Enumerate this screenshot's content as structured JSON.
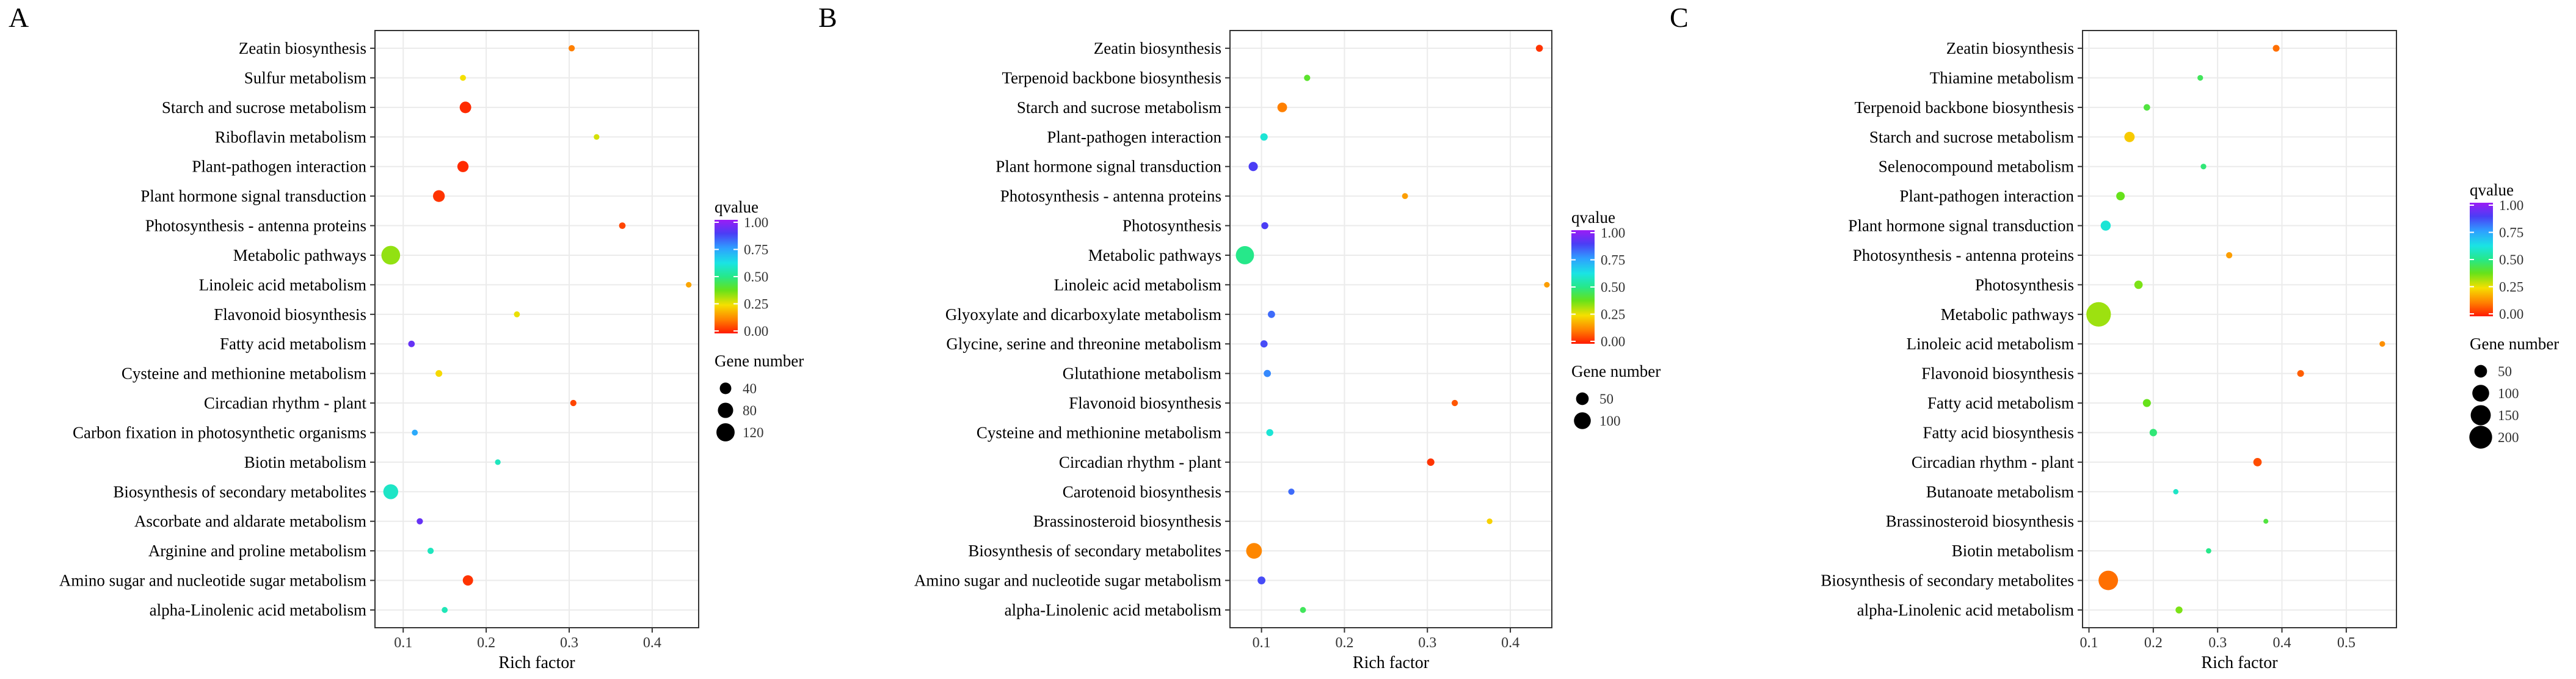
{
  "chart_data": [
    {
      "panel": "A",
      "type": "scatter",
      "xlabel": "Rich factor",
      "x_ticks": [
        0.1,
        0.2,
        0.3,
        0.4
      ],
      "x_tick_labels": [
        "0.1",
        "0.2",
        "0.3",
        "0.4"
      ],
      "xlim": [
        0.066,
        0.456
      ],
      "grid": true,
      "color_legend": {
        "title": "qvalue",
        "ticks": [
          "1.00",
          "0.75",
          "0.50",
          "0.25",
          "0.00"
        ],
        "range": [
          0,
          1
        ]
      },
      "size_legend": {
        "title": "Gene number",
        "values": [
          40,
          80,
          120
        ]
      },
      "pathways": [
        "Zeatin biosynthesis",
        "Sulfur metabolism",
        "Starch and sucrose metabolism",
        "Riboflavin metabolism",
        "Plant-pathogen interaction",
        "Plant hormone signal transduction",
        "Photosynthesis - antenna proteins",
        "Metabolic pathways",
        "Linoleic acid metabolism",
        "Flavonoid biosynthesis",
        "Fatty acid metabolism",
        "Cysteine and methionine metabolism",
        "Circadian rhythm - plant",
        "Carbon fixation in photosynthetic organisms",
        "Biotin metabolism",
        "Biosynthesis of secondary metabolites",
        "Ascorbate and aldarate metabolism",
        "Arginine and proline metabolism",
        "Amino sugar and nucleotide sugar metabolism",
        "alpha-Linolenic acid metabolism"
      ],
      "points": [
        {
          "pathway": "Zeatin biosynthesis",
          "rich_factor": 0.303,
          "qvalue": 0.12,
          "gene_number": 7
        },
        {
          "pathway": "Sulfur metabolism",
          "rich_factor": 0.172,
          "qvalue": 0.25,
          "gene_number": 6
        },
        {
          "pathway": "Starch and sucrose metabolism",
          "rich_factor": 0.175,
          "qvalue": 0.02,
          "gene_number": 40
        },
        {
          "pathway": "Riboflavin metabolism",
          "rich_factor": 0.333,
          "qvalue": 0.28,
          "gene_number": 5
        },
        {
          "pathway": "Plant-pathogen interaction",
          "rich_factor": 0.172,
          "qvalue": 0.02,
          "gene_number": 37
        },
        {
          "pathway": "Plant hormone signal transduction",
          "rich_factor": 0.143,
          "qvalue": 0.03,
          "gene_number": 42
        },
        {
          "pathway": "Photosynthesis - antenna proteins",
          "rich_factor": 0.364,
          "qvalue": 0.05,
          "gene_number": 8
        },
        {
          "pathway": "Metabolic pathways",
          "rich_factor": 0.085,
          "qvalue": 0.34,
          "gene_number": 128
        },
        {
          "pathway": "Linoleic acid metabolism",
          "rich_factor": 0.444,
          "qvalue": 0.17,
          "gene_number": 5
        },
        {
          "pathway": "Flavonoid biosynthesis",
          "rich_factor": 0.237,
          "qvalue": 0.26,
          "gene_number": 6
        },
        {
          "pathway": "Fatty acid metabolism",
          "rich_factor": 0.11,
          "qvalue": 0.92,
          "gene_number": 8
        },
        {
          "pathway": "Cysteine and methionine metabolism",
          "rich_factor": 0.143,
          "qvalue": 0.24,
          "gene_number": 9
        },
        {
          "pathway": "Circadian rhythm - plant",
          "rich_factor": 0.305,
          "qvalue": 0.05,
          "gene_number": 7
        },
        {
          "pathway": "Carbon fixation in photosynthetic organisms",
          "rich_factor": 0.114,
          "qvalue": 0.73,
          "gene_number": 6
        },
        {
          "pathway": "Biotin metabolism",
          "rich_factor": 0.214,
          "qvalue": 0.57,
          "gene_number": 5
        },
        {
          "pathway": "Biosynthesis of secondary metabolites",
          "rich_factor": 0.085,
          "qvalue": 0.58,
          "gene_number": 75
        },
        {
          "pathway": "Ascorbate and aldarate metabolism",
          "rich_factor": 0.12,
          "qvalue": 0.92,
          "gene_number": 7
        },
        {
          "pathway": "Arginine and proline metabolism",
          "rich_factor": 0.133,
          "qvalue": 0.57,
          "gene_number": 7
        },
        {
          "pathway": "Amino sugar and nucleotide sugar metabolism",
          "rich_factor": 0.178,
          "qvalue": 0.03,
          "gene_number": 30
        },
        {
          "pathway": "alpha-Linolenic acid metabolism",
          "rich_factor": 0.15,
          "qvalue": 0.56,
          "gene_number": 6
        }
      ]
    },
    {
      "panel": "B",
      "type": "scatter",
      "xlabel": "Rich factor",
      "x_ticks": [
        0.1,
        0.2,
        0.3,
        0.4
      ],
      "x_tick_labels": [
        "0.1",
        "0.2",
        "0.3",
        "0.4"
      ],
      "xlim": [
        0.062,
        0.45
      ],
      "grid": true,
      "color_legend": {
        "title": "qvalue",
        "ticks": [
          "1.00",
          "0.75",
          "0.50",
          "0.25",
          "0.00"
        ],
        "range": [
          0,
          1
        ]
      },
      "size_legend": {
        "title": "Gene number",
        "values": [
          50,
          100
        ]
      },
      "pathways": [
        "Zeatin biosynthesis",
        "Terpenoid backbone biosynthesis",
        "Starch and sucrose metabolism",
        "Plant-pathogen interaction",
        "Plant hormone signal transduction",
        "Photosynthesis - antenna proteins",
        "Photosynthesis",
        "Metabolic pathways",
        "Linoleic acid metabolism",
        "Glyoxylate and dicarboxylate metabolism",
        "Glycine, serine and threonine metabolism",
        "Glutathione metabolism",
        "Flavonoid biosynthesis",
        "Cysteine and methionine metabolism",
        "Circadian rhythm - plant",
        "Carotenoid biosynthesis",
        "Brassinosteroid biosynthesis",
        "Biosynthesis of secondary metabolites",
        "Amino sugar and nucleotide sugar metabolism",
        "alpha-Linolenic acid metabolism"
      ],
      "points": [
        {
          "pathway": "Zeatin biosynthesis",
          "rich_factor": 0.435,
          "qvalue": 0.03,
          "gene_number": 10
        },
        {
          "pathway": "Terpenoid backbone biosynthesis",
          "rich_factor": 0.155,
          "qvalue": 0.4,
          "gene_number": 7
        },
        {
          "pathway": "Starch and sucrose metabolism",
          "rich_factor": 0.125,
          "qvalue": 0.12,
          "gene_number": 25
        },
        {
          "pathway": "Plant-pathogen interaction",
          "rich_factor": 0.103,
          "qvalue": 0.6,
          "gene_number": 12
        },
        {
          "pathway": "Plant hormone signal transduction",
          "rich_factor": 0.09,
          "qvalue": 0.88,
          "gene_number": 22
        },
        {
          "pathway": "Photosynthesis - antenna proteins",
          "rich_factor": 0.273,
          "qvalue": 0.16,
          "gene_number": 6
        },
        {
          "pathway": "Photosynthesis",
          "rich_factor": 0.104,
          "qvalue": 0.88,
          "gene_number": 10
        },
        {
          "pathway": "Metabolic pathways",
          "rich_factor": 0.08,
          "qvalue": 0.5,
          "gene_number": 120
        },
        {
          "pathway": "Linoleic acid metabolism",
          "rich_factor": 0.444,
          "qvalue": 0.16,
          "gene_number": 5
        },
        {
          "pathway": "Glyoxylate and dicarboxylate metabolism",
          "rich_factor": 0.112,
          "qvalue": 0.82,
          "gene_number": 11
        },
        {
          "pathway": "Glycine, serine and threonine metabolism",
          "rich_factor": 0.103,
          "qvalue": 0.86,
          "gene_number": 11
        },
        {
          "pathway": "Glutathione metabolism",
          "rich_factor": 0.107,
          "qvalue": 0.78,
          "gene_number": 11
        },
        {
          "pathway": "Flavonoid biosynthesis",
          "rich_factor": 0.333,
          "qvalue": 0.07,
          "gene_number": 7
        },
        {
          "pathway": "Cysteine and methionine metabolism",
          "rich_factor": 0.11,
          "qvalue": 0.6,
          "gene_number": 10
        },
        {
          "pathway": "Circadian rhythm - plant",
          "rich_factor": 0.304,
          "qvalue": 0.03,
          "gene_number": 12
        },
        {
          "pathway": "Carotenoid biosynthesis",
          "rich_factor": 0.136,
          "qvalue": 0.82,
          "gene_number": 7
        },
        {
          "pathway": "Brassinosteroid biosynthesis",
          "rich_factor": 0.375,
          "qvalue": 0.23,
          "gene_number": 5
        },
        {
          "pathway": "Biosynthesis of secondary metabolites",
          "rich_factor": 0.091,
          "qvalue": 0.13,
          "gene_number": 85
        },
        {
          "pathway": "Amino sugar and nucleotide sugar metabolism",
          "rich_factor": 0.1,
          "qvalue": 0.86,
          "gene_number": 14
        },
        {
          "pathway": "alpha-Linolenic acid metabolism",
          "rich_factor": 0.15,
          "qvalue": 0.45,
          "gene_number": 6
        }
      ]
    },
    {
      "panel": "C",
      "type": "scatter",
      "xlabel": "Rich factor",
      "x_ticks": [
        0.1,
        0.2,
        0.3,
        0.4,
        0.5
      ],
      "x_tick_labels": [
        "0.1",
        "0.2",
        "0.3",
        "0.4",
        "0.5"
      ],
      "xlim": [
        0.09,
        0.578
      ],
      "grid": true,
      "color_legend": {
        "title": "qvalue",
        "ticks": [
          "1.00",
          "0.75",
          "0.50",
          "0.25",
          "0.00"
        ],
        "range": [
          0,
          1
        ]
      },
      "size_legend": {
        "title": "Gene number",
        "values": [
          50,
          100,
          150,
          200
        ]
      },
      "pathways": [
        "Zeatin biosynthesis",
        "Thiamine metabolism",
        "Terpenoid backbone biosynthesis",
        "Starch and sucrose metabolism",
        "Selenocompound metabolism",
        "Plant-pathogen interaction",
        "Plant hormone signal transduction",
        "Photosynthesis - antenna proteins",
        "Photosynthesis",
        "Metabolic pathways",
        "Linoleic acid metabolism",
        "Flavonoid biosynthesis",
        "Fatty acid metabolism",
        "Fatty acid biosynthesis",
        "Circadian rhythm - plant",
        "Butanoate metabolism",
        "Brassinosteroid biosynthesis",
        "Biotin metabolism",
        "Biosynthesis of secondary metabolites",
        "alpha-Linolenic acid metabolism"
      ],
      "points": [
        {
          "pathway": "Zeatin biosynthesis",
          "rich_factor": 0.391,
          "qvalue": 0.1,
          "gene_number": 9
        },
        {
          "pathway": "Thiamine metabolism",
          "rich_factor": 0.273,
          "qvalue": 0.45,
          "gene_number": 5
        },
        {
          "pathway": "Terpenoid backbone biosynthesis",
          "rich_factor": 0.19,
          "qvalue": 0.42,
          "gene_number": 8
        },
        {
          "pathway": "Starch and sucrose metabolism",
          "rich_factor": 0.163,
          "qvalue": 0.22,
          "gene_number": 30
        },
        {
          "pathway": "Selenocompound metabolism",
          "rich_factor": 0.278,
          "qvalue": 0.48,
          "gene_number": 5
        },
        {
          "pathway": "Plant-pathogen interaction",
          "rich_factor": 0.149,
          "qvalue": 0.38,
          "gene_number": 18
        },
        {
          "pathway": "Plant hormone signal transduction",
          "rich_factor": 0.126,
          "qvalue": 0.6,
          "gene_number": 28
        },
        {
          "pathway": "Photosynthesis - antenna proteins",
          "rich_factor": 0.318,
          "qvalue": 0.16,
          "gene_number": 7
        },
        {
          "pathway": "Photosynthesis",
          "rich_factor": 0.177,
          "qvalue": 0.36,
          "gene_number": 17
        },
        {
          "pathway": "Metabolic pathways",
          "rich_factor": 0.115,
          "qvalue": 0.33,
          "gene_number": 235
        },
        {
          "pathway": "Linoleic acid metabolism",
          "rich_factor": 0.556,
          "qvalue": 0.14,
          "gene_number": 5
        },
        {
          "pathway": "Flavonoid biosynthesis",
          "rich_factor": 0.429,
          "qvalue": 0.08,
          "gene_number": 9
        },
        {
          "pathway": "Fatty acid metabolism",
          "rich_factor": 0.19,
          "qvalue": 0.38,
          "gene_number": 15
        },
        {
          "pathway": "Fatty acid biosynthesis",
          "rich_factor": 0.2,
          "qvalue": 0.48,
          "gene_number": 12
        },
        {
          "pathway": "Circadian rhythm - plant",
          "rich_factor": 0.362,
          "qvalue": 0.06,
          "gene_number": 17
        },
        {
          "pathway": "Butanoate metabolism",
          "rich_factor": 0.235,
          "qvalue": 0.58,
          "gene_number": 4
        },
        {
          "pathway": "Brassinosteroid biosynthesis",
          "rich_factor": 0.375,
          "qvalue": 0.42,
          "gene_number": 3
        },
        {
          "pathway": "Biotin metabolism",
          "rich_factor": 0.286,
          "qvalue": 0.5,
          "gene_number": 4
        },
        {
          "pathway": "Biosynthesis of secondary metabolites",
          "rich_factor": 0.13,
          "qvalue": 0.1,
          "gene_number": 140
        },
        {
          "pathway": "alpha-Linolenic acid metabolism",
          "rich_factor": 0.24,
          "qvalue": 0.36,
          "gene_number": 10
        }
      ]
    }
  ]
}
